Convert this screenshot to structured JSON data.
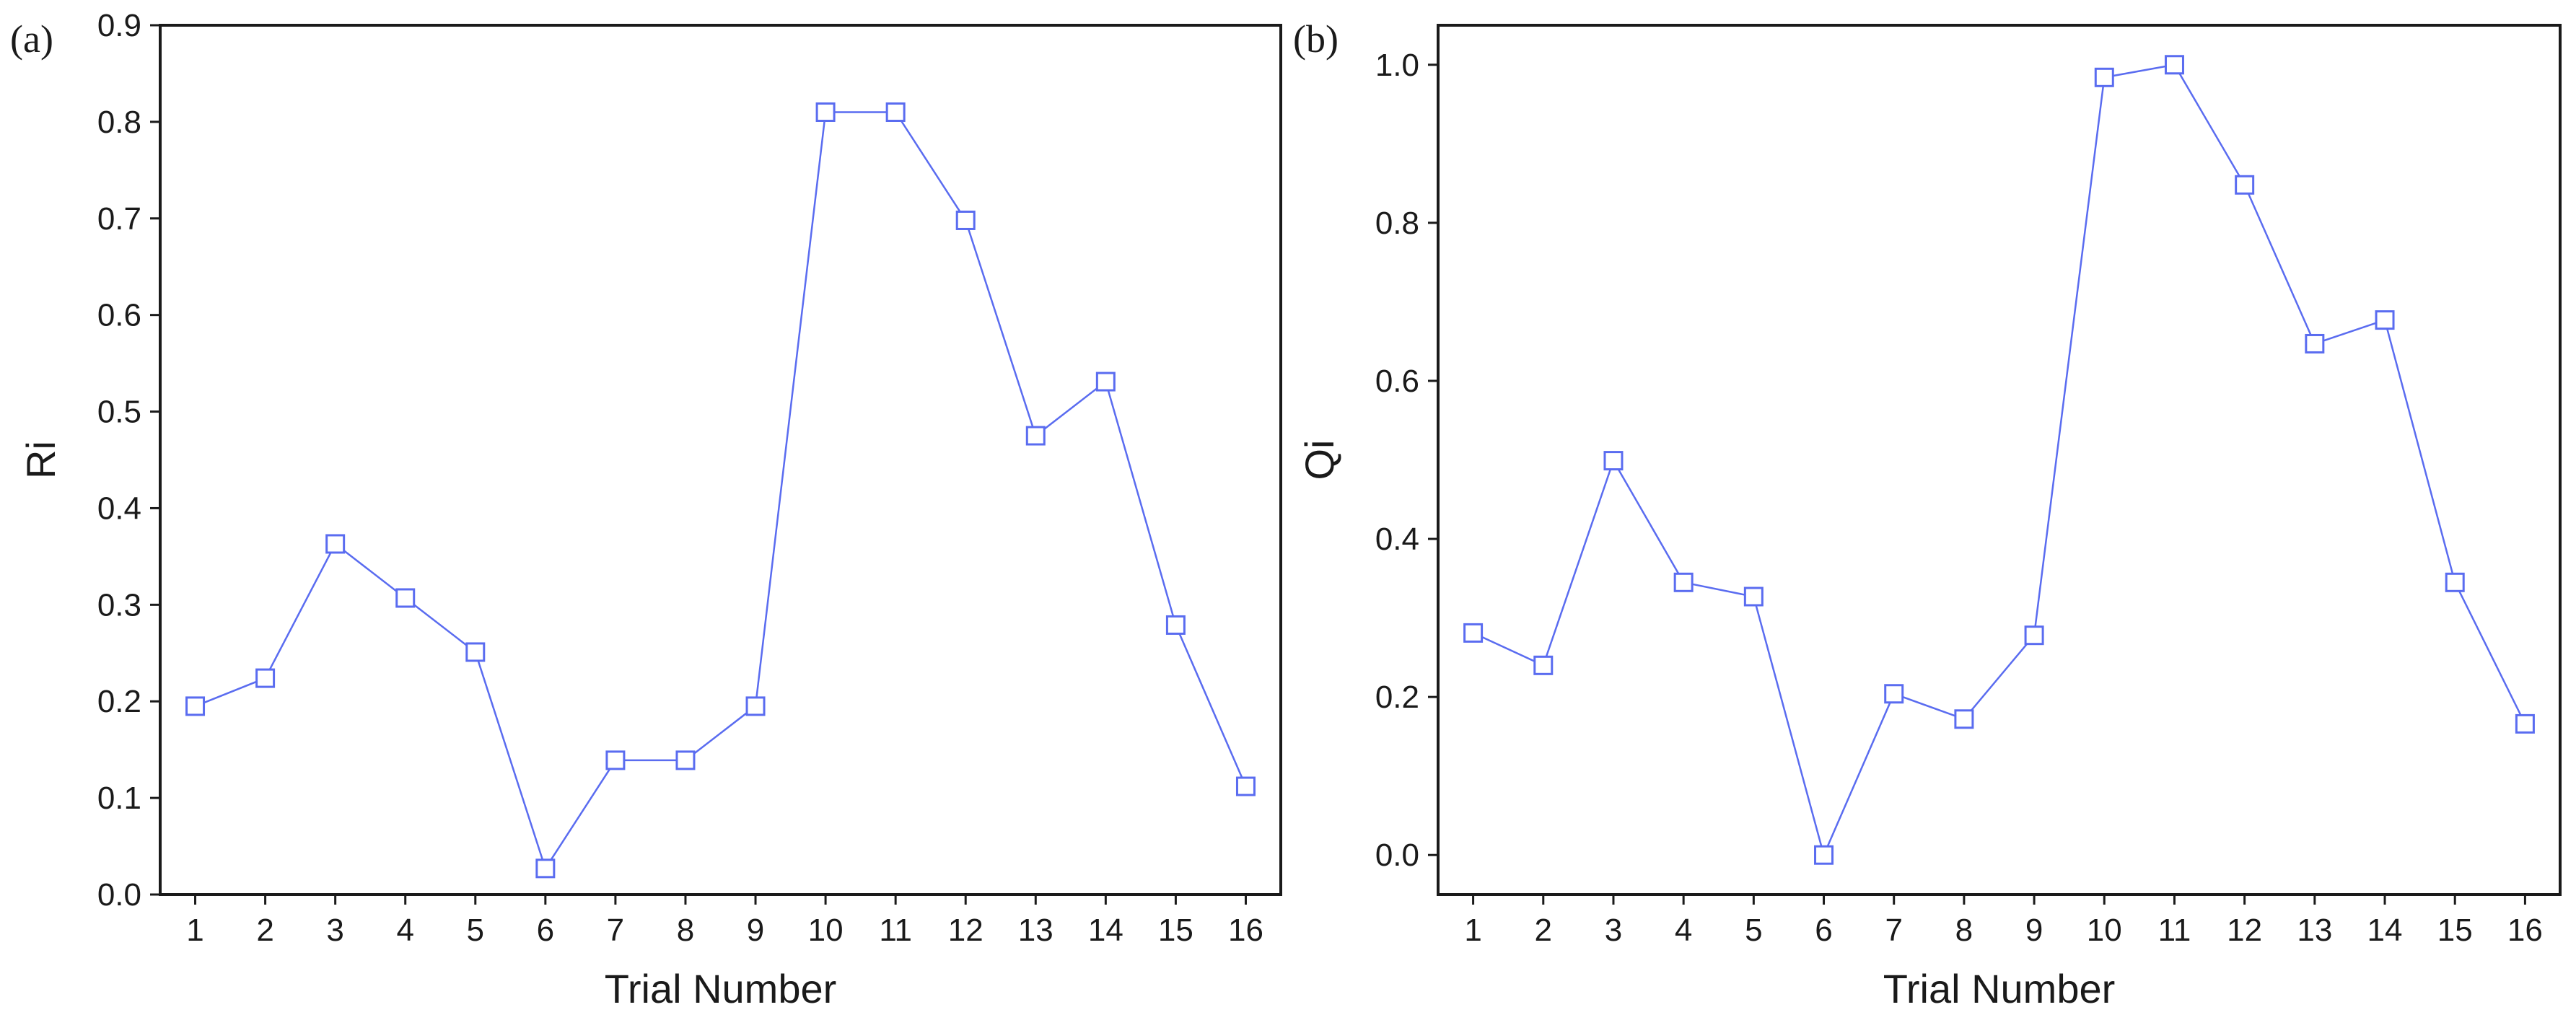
{
  "chart_data": [
    {
      "type": "line",
      "panel_label": "(a)",
      "title": "",
      "xlabel": "Trial Number",
      "ylabel": "Ri",
      "x": [
        1,
        2,
        3,
        4,
        5,
        6,
        7,
        8,
        9,
        10,
        11,
        12,
        13,
        14,
        15,
        16
      ],
      "xticks": [
        "1",
        "2",
        "3",
        "4",
        "5",
        "6",
        "7",
        "8",
        "9",
        "10",
        "11",
        "12",
        "13",
        "14",
        "15",
        "16"
      ],
      "yticks": [
        "0.0",
        "0.1",
        "0.2",
        "0.3",
        "0.4",
        "0.5",
        "0.6",
        "0.7",
        "0.8",
        "0.9"
      ],
      "ylim": [
        0,
        0.9
      ],
      "series": [
        {
          "values": [
            0.195,
            0.224,
            0.363,
            0.307,
            0.251,
            0.027,
            0.139,
            0.139,
            0.195,
            0.81,
            0.81,
            0.698,
            0.475,
            0.531,
            0.279,
            0.112
          ]
        }
      ],
      "marker": "hollow-square",
      "grid": false
    },
    {
      "type": "line",
      "panel_label": "(b)",
      "title": "",
      "xlabel": "Trial Number",
      "ylabel": "Qi",
      "x": [
        1,
        2,
        3,
        4,
        5,
        6,
        7,
        8,
        9,
        10,
        11,
        12,
        13,
        14,
        15,
        16
      ],
      "xticks": [
        "1",
        "2",
        "3",
        "4",
        "5",
        "6",
        "7",
        "8",
        "9",
        "10",
        "11",
        "12",
        "13",
        "14",
        "15",
        "16"
      ],
      "yticks": [
        "0.0",
        "0.2",
        "0.4",
        "0.6",
        "0.8",
        "1.0"
      ],
      "ylim": [
        -0.05,
        1.05
      ],
      "series": [
        {
          "values": [
            0.281,
            0.24,
            0.499,
            0.345,
            0.327,
            0.0,
            0.204,
            0.172,
            0.278,
            0.984,
            1.0,
            0.848,
            0.647,
            0.677,
            0.345,
            0.166
          ]
        }
      ],
      "marker": "hollow-square",
      "grid": false
    }
  ],
  "colors": {
    "series": "#5a6cf0",
    "axis": "#1a1a1a"
  }
}
